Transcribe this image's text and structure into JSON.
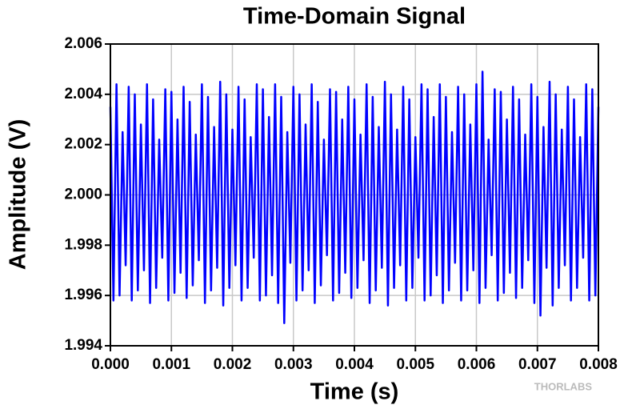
{
  "chart_data": {
    "type": "line",
    "title": "Time-Domain Signal",
    "xlabel": "Time (s)",
    "ylabel": "Amplitude (V)",
    "watermark": "THORLABS",
    "grid": true,
    "color": "#0000ff",
    "xlim": [
      0,
      0.008
    ],
    "ylim": [
      1.994,
      2.006
    ],
    "xticks": [
      {
        "value": 0,
        "label": "0.000"
      },
      0.001,
      0.002,
      0.003,
      0.004,
      0.005,
      0.006,
      0.007,
      0.008
    ],
    "yticks": [
      1.994,
      1.996,
      1.998,
      {
        "value": 2,
        "label": "2.000"
      },
      2.002,
      2.004,
      2.006
    ],
    "x": [
      0,
      5e-05,
      0.0001,
      0.00015,
      0.0002,
      0.00025,
      0.0003,
      0.00035,
      0.0004,
      0.00045,
      0.0005,
      0.00055,
      0.0006,
      0.00065,
      0.0007,
      0.00075,
      0.0008,
      0.00085,
      0.0009,
      0.00095,
      0.001,
      0.00105,
      0.0011,
      0.00115,
      0.0012,
      0.00125,
      0.0013,
      0.00135,
      0.0014,
      0.00145,
      0.0015,
      0.00155,
      0.0016,
      0.00165,
      0.0017,
      0.00175,
      0.0018,
      0.00185,
      0.0019,
      0.00195,
      0.002,
      0.00205,
      0.0021,
      0.00215,
      0.0022,
      0.00225,
      0.0023,
      0.00235,
      0.0024,
      0.00245,
      0.0025,
      0.00255,
      0.0026,
      0.00265,
      0.0027,
      0.00275,
      0.0028,
      0.00285,
      0.0029,
      0.00295,
      0.003,
      0.00305,
      0.0031,
      0.00315,
      0.0032,
      0.00325,
      0.0033,
      0.00335,
      0.0034,
      0.00345,
      0.0035,
      0.00355,
      0.0036,
      0.00365,
      0.0037,
      0.00375,
      0.0038,
      0.00385,
      0.0039,
      0.00395,
      0.004,
      0.00405,
      0.0041,
      0.00415,
      0.0042,
      0.00425,
      0.0043,
      0.00435,
      0.0044,
      0.00445,
      0.0045,
      0.00455,
      0.0046,
      0.00465,
      0.0047,
      0.00475,
      0.0048,
      0.00485,
      0.0049,
      0.00495,
      0.005,
      0.00505,
      0.0051,
      0.00515,
      0.0052,
      0.00525,
      0.0053,
      0.00535,
      0.0054,
      0.00545,
      0.0055,
      0.00555,
      0.0056,
      0.00565,
      0.0057,
      0.00575,
      0.0058,
      0.00585,
      0.0059,
      0.00595,
      0.006,
      0.00605,
      0.0061,
      0.00615,
      0.0062,
      0.00625,
      0.0063,
      0.00635,
      0.0064,
      0.00645,
      0.0065,
      0.00655,
      0.0066,
      0.00665,
      0.0067,
      0.00675,
      0.0068,
      0.00685,
      0.0069,
      0.00695,
      0.007,
      0.00705,
      0.0071,
      0.00715,
      0.0072,
      0.00725,
      0.0073,
      0.00735,
      0.0074,
      0.00745,
      0.0075,
      0.00755,
      0.0076,
      0.00765,
      0.0077,
      0.00775,
      0.0078,
      0.00785,
      0.0079,
      0.00795,
      0.008
    ],
    "values": [
      2.0035,
      1.9958,
      2.0044,
      1.996,
      2.0025,
      1.9972,
      2.0043,
      1.9958,
      2.004,
      1.9962,
      2.0028,
      1.997,
      2.0044,
      1.9957,
      2.0038,
      1.9963,
      2.0022,
      1.9975,
      2.0042,
      1.9958,
      2.0041,
      1.9961,
      2.003,
      1.9969,
      2.0043,
      1.9959,
      2.0037,
      1.9964,
      2.0024,
      1.9974,
      2.0044,
      1.9957,
      2.0039,
      1.9962,
      2.0027,
      1.9971,
      2.0045,
      1.9956,
      2.004,
      1.9963,
      2.0026,
      1.9972,
      2.0043,
      1.9958,
      2.0038,
      1.9963,
      2.0023,
      1.9975,
      2.0044,
      1.9958,
      2.0042,
      1.996,
      2.0031,
      1.9968,
      2.0044,
      1.9957,
      2.0039,
      1.9949,
      2.0025,
      1.9973,
      2.0043,
      1.9958,
      2.004,
      1.9962,
      2.0028,
      1.997,
      2.0044,
      1.9957,
      2.0037,
      1.9964,
      2.0022,
      1.9976,
      2.0042,
      1.9958,
      2.0041,
      1.9961,
      2.003,
      1.9969,
      2.0043,
      1.9959,
      2.0038,
      1.9963,
      2.0024,
      1.9974,
      2.0044,
      1.9957,
      2.0039,
      1.9962,
      2.0027,
      1.9971,
      2.0045,
      1.9956,
      2.004,
      1.9963,
      2.0026,
      1.9972,
      2.0043,
      1.9958,
      2.0038,
      1.9963,
      2.0023,
      1.9975,
      2.0044,
      1.9958,
      2.0042,
      1.996,
      2.0031,
      1.9968,
      2.0044,
      1.9957,
      2.0039,
      1.9962,
      2.0025,
      1.9973,
      2.0043,
      1.9958,
      2.004,
      1.9962,
      2.0028,
      1.997,
      2.0044,
      1.9957,
      2.0049,
      1.9963,
      2.0022,
      1.9976,
      2.0042,
      1.9958,
      2.0041,
      1.9961,
      2.003,
      1.9969,
      2.0043,
      1.9959,
      2.0038,
      1.9963,
      2.0024,
      1.9974,
      2.0044,
      1.9957,
      2.0039,
      1.9952,
      2.0027,
      1.9971,
      2.0045,
      1.9956,
      2.004,
      1.9963,
      2.0026,
      1.9972,
      2.0043,
      1.9958,
      2.0038,
      1.9963,
      2.0023,
      1.9975,
      2.0044,
      1.9958,
      2.0042,
      1.996,
      2.0035
    ]
  }
}
